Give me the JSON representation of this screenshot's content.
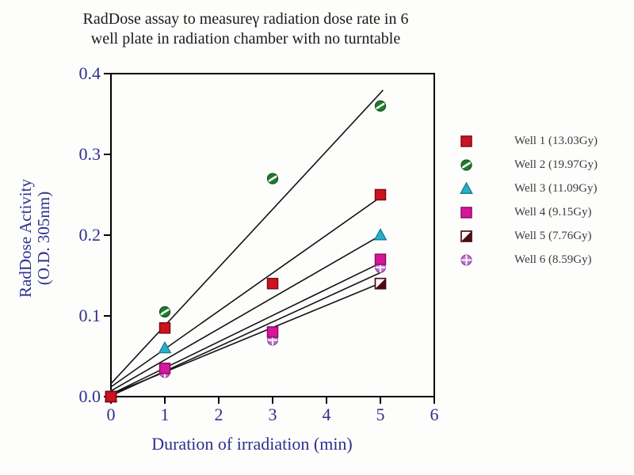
{
  "title": {
    "line1": "RadDose assay to measureγ radiation dose rate in 6",
    "line2": "well plate in radiation chamber with no turntable"
  },
  "colors": {
    "axis_text": "#2f2f8f",
    "frame": "#000000",
    "fit_line": "#141414",
    "background": "#fdfdfc",
    "legend_text": "#3c3c3c"
  },
  "chart_data": {
    "type": "scatter",
    "x": [
      0,
      1,
      3,
      5
    ],
    "xlabel": "Duration of irradiation (min)",
    "ylabel_line1": "RadDose Activity",
    "ylabel_line2": "(O.D. 305nm)",
    "xlim": [
      0,
      6
    ],
    "ylim": [
      0,
      0.4
    ],
    "xticks": [
      "0",
      "1",
      "2",
      "3",
      "4",
      "5",
      "6"
    ],
    "yticks": [
      "0.0",
      "0.1",
      "0.2",
      "0.3",
      "0.4"
    ],
    "grid": false,
    "legend_position": "right",
    "series": [
      {
        "name": "Well 1 (13.03Gy)",
        "marker": "filled-square",
        "fill": "#cc1420",
        "stroke": "#7e0a10",
        "values": [
          0,
          0.085,
          0.14,
          0.25
        ],
        "fit": {
          "slope": 0.047,
          "intercept": 0.012
        }
      },
      {
        "name": "Well 2 (19.97Gy)",
        "marker": "sphere",
        "fill": "#1e7c2e",
        "stroke": "#0f5c1e",
        "values": [
          0,
          0.105,
          0.27,
          0.36
        ],
        "fit": {
          "slope": 0.072,
          "intercept": 0.016
        }
      },
      {
        "name": "Well 3 (11.09Gy)",
        "marker": "filled-triangle",
        "fill": "#2aaec6",
        "stroke": "#137f94",
        "values": [
          0,
          0.06,
          null,
          0.2
        ],
        "fit": {
          "slope": 0.0385,
          "intercept": 0.007
        }
      },
      {
        "name": "Well 4 (9.15Gy)",
        "marker": "filled-square",
        "fill": "#d6169c",
        "stroke": "#8c0c64",
        "values": [
          0,
          0.035,
          0.08,
          0.17
        ],
        "fit": {
          "slope": 0.0325,
          "intercept": 0.003
        }
      },
      {
        "name": "Well 5 (7.76Gy)",
        "marker": "half-filled-square",
        "fill": "#4d0c14",
        "stroke": "#38070e",
        "values": [
          0,
          null,
          null,
          0.14
        ],
        "fit": {
          "slope": 0.0275,
          "intercept": 0.003
        }
      },
      {
        "name": "Well 6 (8.59Gy)",
        "marker": "circle-plus",
        "fill": "#bd76cc",
        "stroke": "#8f44a8",
        "values": [
          0,
          0.03,
          0.07,
          0.16
        ],
        "fit": {
          "slope": 0.0305,
          "intercept": 0.001
        }
      }
    ]
  }
}
